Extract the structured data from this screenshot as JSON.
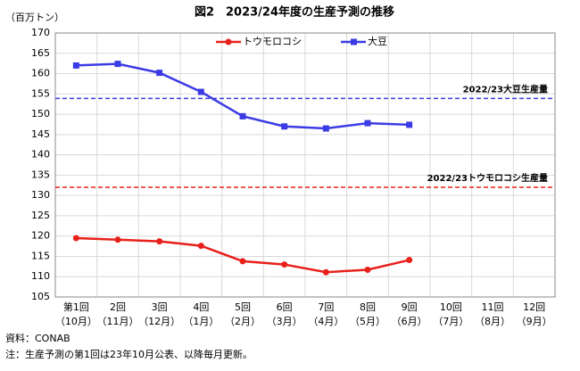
{
  "chart_data": {
    "type": "line",
    "title": "図2　2023/24年度の生産予測の推移",
    "y_axis_label": "（百万トン）",
    "categories": [
      [
        "第1回",
        "（10月）"
      ],
      [
        "2回",
        "（11月）"
      ],
      [
        "3回",
        "（12月）"
      ],
      [
        "4回",
        "（1月）"
      ],
      [
        "5回",
        "（2月）"
      ],
      [
        "6回",
        "（3月）"
      ],
      [
        "7回",
        "（4月）"
      ],
      [
        "8回",
        "（5月）"
      ],
      [
        "9回",
        "（6月）"
      ],
      [
        "10回",
        "（7月）"
      ],
      [
        "11回",
        "（8月）"
      ],
      [
        "12回",
        "（9月）"
      ]
    ],
    "series": [
      {
        "name": "トウモロコシ",
        "color": "#e8201a",
        "marker": "circle",
        "values": [
          119.5,
          119.1,
          118.7,
          117.6,
          113.8,
          113.0,
          111.1,
          111.7,
          114.1,
          null,
          null,
          null
        ]
      },
      {
        "name": "大豆",
        "color": "#3b3be6",
        "marker": "square",
        "values": [
          162.0,
          162.4,
          160.2,
          155.5,
          149.5,
          147.0,
          146.5,
          147.8,
          147.4,
          null,
          null,
          null
        ]
      }
    ],
    "reference_lines": [
      {
        "label": "2022/23大豆生産量",
        "value": 153.9,
        "color": "#3b3be6"
      },
      {
        "label": "2022/23トウモロコシ生産量",
        "value": 132.0,
        "color": "#e8201a"
      }
    ],
    "ylim": [
      105,
      170
    ],
    "yticks": [
      105,
      110,
      115,
      120,
      125,
      130,
      135,
      140,
      145,
      150,
      155,
      160,
      165,
      170
    ],
    "grid": true,
    "legend": "top",
    "source": "資料：CONAB",
    "note": "注：生産予測の第1回は23年10月公表、以降毎月更新。"
  }
}
